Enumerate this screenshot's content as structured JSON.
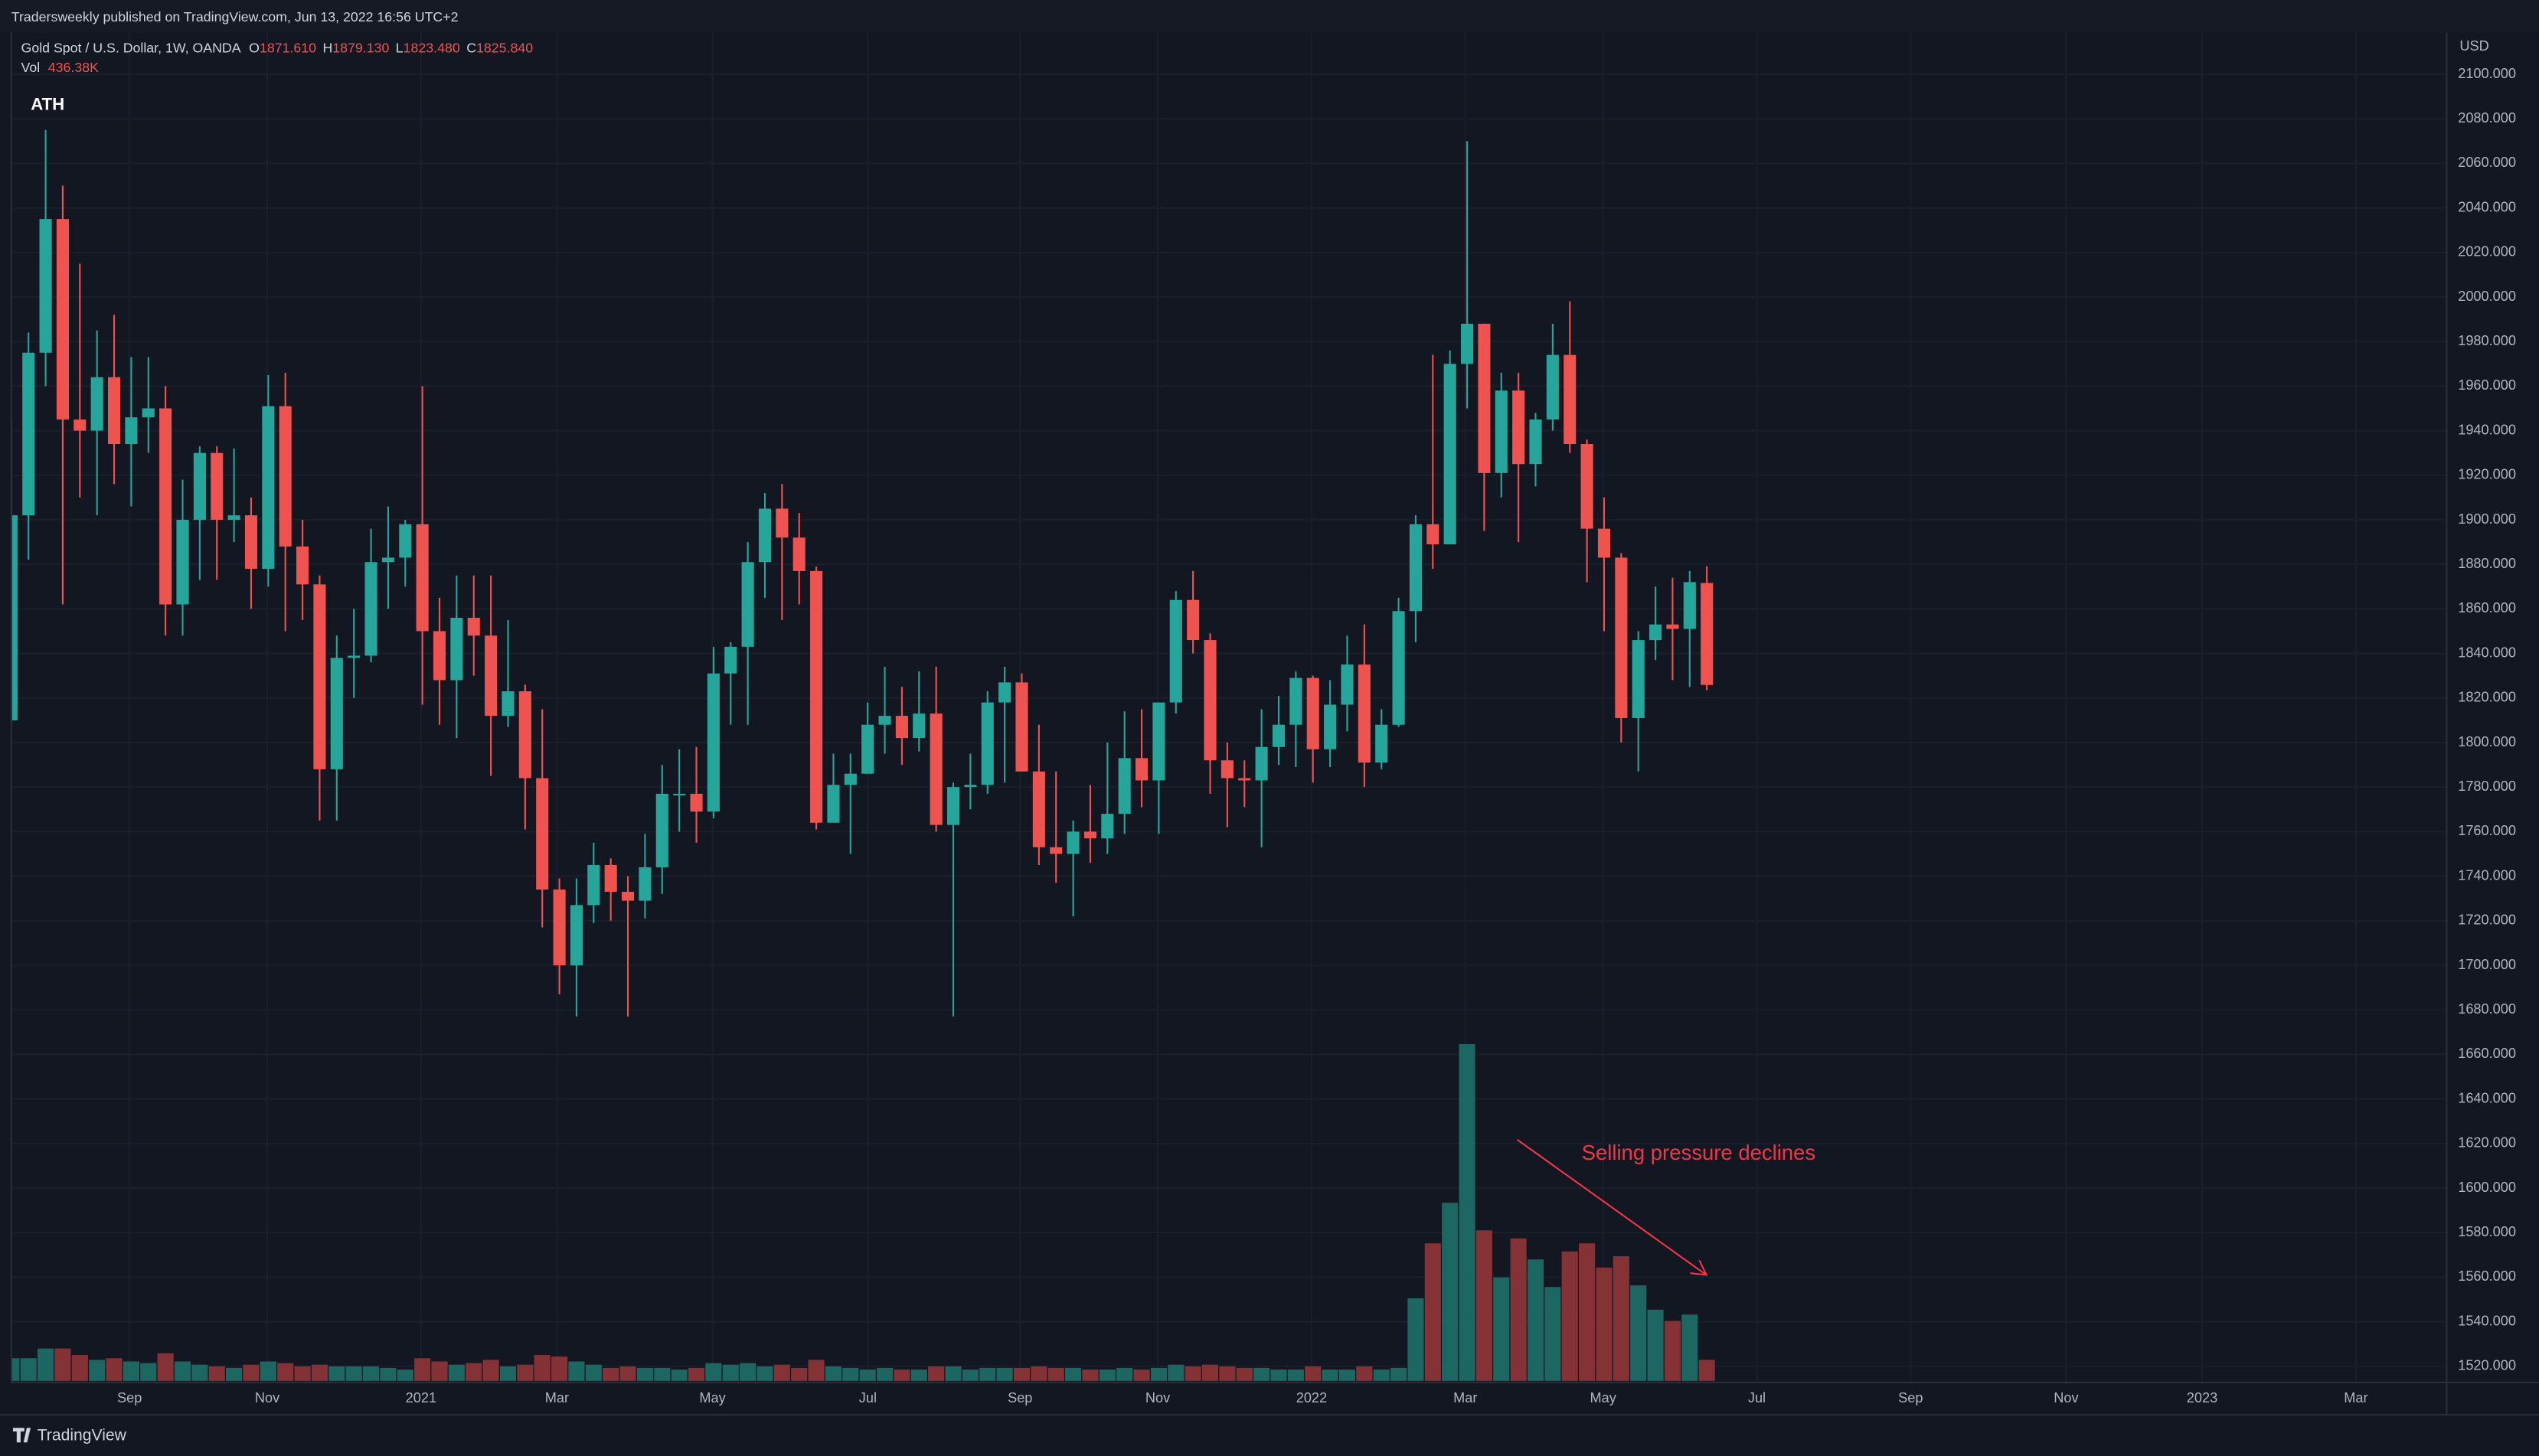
{
  "header": "Tradersweekly published on TradingView.com, Jun 13, 2022 16:56 UTC+2",
  "footer": {
    "logo": "TradingView"
  },
  "chart_data": {
    "type": "candlestick",
    "title": "Gold Spot / U.S. Dollar, 1W, OANDA",
    "legend_keys": [
      "O",
      "H",
      "L",
      "C"
    ],
    "legend_values": [
      "1871.610",
      "1879.130",
      "1823.480",
      "1825.840"
    ],
    "volume_name": "Vol",
    "volume_label": "436.38K",
    "axis_unit": "USD",
    "annotations": [
      "ATH",
      "Selling pressure declines"
    ],
    "up_color": "#26a69a",
    "down_color": "#ef5350",
    "volume_up_color": "#1d6763",
    "volume_down_color": "#853236",
    "annotation_color": "#f23645",
    "grid": true,
    "xlim": [
      0,
      142.2
    ],
    "xticks": [
      {
        "value": 6.9,
        "label": "Sep"
      },
      {
        "value": 14.94,
        "label": "Nov"
      },
      {
        "value": 23.92,
        "label": "2021"
      },
      {
        "value": 31.86,
        "label": "Mar"
      },
      {
        "value": 40.94,
        "label": "May"
      },
      {
        "value": 50.01,
        "label": "Jul"
      },
      {
        "value": 58.9,
        "label": "Sep"
      },
      {
        "value": 66.94,
        "label": "Nov"
      },
      {
        "value": 75.92,
        "label": "2022"
      },
      {
        "value": 84.9,
        "label": "Mar"
      },
      {
        "value": 92.94,
        "label": "May"
      },
      {
        "value": 101.92,
        "label": "Jul"
      },
      {
        "value": 110.9,
        "label": "Sep"
      },
      {
        "value": 119.98,
        "label": "Nov"
      },
      {
        "value": 127.92,
        "label": "2023"
      },
      {
        "value": 136.9,
        "label": "Mar"
      }
    ],
    "ylim": [
      1512.7,
      2118.8
    ],
    "yticks": [
      {
        "value": 1520,
        "label": "1520.000"
      },
      {
        "value": 1540,
        "label": "1540.000"
      },
      {
        "value": 1560,
        "label": "1560.000"
      },
      {
        "value": 1580,
        "label": "1580.000"
      },
      {
        "value": 1600,
        "label": "1600.000"
      },
      {
        "value": 1620,
        "label": "1620.000"
      },
      {
        "value": 1640,
        "label": "1640.000"
      },
      {
        "value": 1660,
        "label": "1660.000"
      },
      {
        "value": 1680,
        "label": "1680.000"
      },
      {
        "value": 1700,
        "label": "1700.000"
      },
      {
        "value": 1720,
        "label": "1720.000"
      },
      {
        "value": 1740,
        "label": "1740.000"
      },
      {
        "value": 1760,
        "label": "1760.000"
      },
      {
        "value": 1780,
        "label": "1780.000"
      },
      {
        "value": 1800,
        "label": "1800.000"
      },
      {
        "value": 1820,
        "label": "1820.000"
      },
      {
        "value": 1840,
        "label": "1840.000"
      },
      {
        "value": 1860,
        "label": "1860.000"
      },
      {
        "value": 1880,
        "label": "1880.000"
      },
      {
        "value": 1900,
        "label": "1900.000"
      },
      {
        "value": 1920,
        "label": "1920.000"
      },
      {
        "value": 1940,
        "label": "1940.000"
      },
      {
        "value": 1960,
        "label": "1960.000"
      },
      {
        "value": 1980,
        "label": "1980.000"
      },
      {
        "value": 2000,
        "label": "2000.000"
      },
      {
        "value": 2020,
        "label": "2020.000"
      },
      {
        "value": 2040,
        "label": "2040.000"
      },
      {
        "value": 2060,
        "label": "2060.000"
      },
      {
        "value": 2080,
        "label": "2080.000"
      },
      {
        "value": 2100,
        "label": "2100.000"
      }
    ],
    "volume_lim": [
      0,
      7500000
    ],
    "open": [
      1810,
      1902,
      1975,
      2035,
      1945,
      1940,
      1964,
      1934,
      1946,
      1950,
      1862,
      1900,
      1930,
      1900,
      1902,
      1878,
      1951,
      1888,
      1871,
      1788,
      1838,
      1839,
      1881,
      1883,
      1898,
      1850,
      1828,
      1856,
      1848,
      1812,
      1823,
      1784,
      1734,
      1700,
      1727,
      1745,
      1733,
      1729,
      1744,
      1777,
      1777,
      1769,
      1831,
      1843,
      1881,
      1905,
      1892,
      1877,
      1764,
      1781,
      1786,
      1808,
      1812,
      1802,
      1813,
      1763,
      1780,
      1781,
      1818,
      1827,
      1787,
      1753,
      1750,
      1760,
      1757,
      1768,
      1793,
      1783,
      1818,
      1864,
      1846,
      1792,
      1784,
      1783,
      1798,
      1808,
      1829,
      1797,
      1817,
      1835,
      1791,
      1808,
      1859,
      1898,
      1889,
      1970,
      1988,
      1921,
      1958,
      1925,
      1945,
      1974,
      1934,
      1896,
      1883,
      1811,
      1846,
      1853,
      1851,
      1871.61
    ],
    "high": [
      1945,
      1984,
      2075,
      2050,
      2015,
      1985,
      1992,
      1973,
      1973,
      1960,
      1918,
      1933,
      1933,
      1932,
      1910,
      1965,
      1966,
      1900,
      1875,
      1848,
      1860,
      1896,
      1906,
      1900,
      1960,
      1865,
      1875,
      1875,
      1875,
      1855,
      1826,
      1815,
      1739,
      1739,
      1755,
      1748,
      1740,
      1759,
      1790,
      1797,
      1798,
      1843,
      1845,
      1890,
      1912,
      1916,
      1903,
      1879,
      1795,
      1795,
      1818,
      1834,
      1825,
      1832,
      1834,
      1782,
      1795,
      1823,
      1834,
      1831,
      1808,
      1787,
      1765,
      1781,
      1800,
      1814,
      1815,
      1818,
      1868,
      1877,
      1849,
      1800,
      1792,
      1815,
      1821,
      1832,
      1830,
      1828,
      1848,
      1853,
      1815,
      1865,
      1902,
      1974,
      1976,
      2070,
      1988,
      1966,
      1966,
      1948,
      1988,
      1998,
      1936,
      1910,
      1885,
      1850,
      1870,
      1874,
      1877,
      1879.13
    ],
    "low": [
      1808,
      1882,
      1960,
      1862,
      1910,
      1902,
      1916,
      1906,
      1930,
      1848,
      1848,
      1873,
      1873,
      1890,
      1860,
      1870,
      1850,
      1855,
      1765,
      1765,
      1820,
      1836,
      1860,
      1870,
      1817,
      1808,
      1802,
      1830,
      1785,
      1807,
      1761,
      1717,
      1687,
      1677,
      1719,
      1720,
      1677,
      1721,
      1732,
      1760,
      1755,
      1766,
      1808,
      1808,
      1865,
      1855,
      1862,
      1761,
      1766,
      1750,
      1786,
      1795,
      1790,
      1796,
      1760,
      1677,
      1770,
      1777,
      1782,
      1787,
      1745,
      1737,
      1722,
      1746,
      1750,
      1759,
      1771,
      1759,
      1813,
      1840,
      1777,
      1762,
      1771,
      1753,
      1790,
      1789,
      1782,
      1789,
      1805,
      1780,
      1788,
      1807,
      1845,
      1878,
      1889,
      1950,
      1895,
      1910,
      1890,
      1915,
      1940,
      1930,
      1872,
      1850,
      1800,
      1787,
      1837,
      1828,
      1825,
      1823.48
    ],
    "close": [
      1902,
      1975,
      2035,
      1945,
      1940,
      1964,
      1934,
      1946,
      1950,
      1862,
      1900,
      1930,
      1900,
      1902,
      1878,
      1951,
      1888,
      1871,
      1788,
      1838,
      1839,
      1881,
      1883,
      1898,
      1850,
      1828,
      1856,
      1848,
      1812,
      1823,
      1784,
      1734,
      1700,
      1727,
      1745,
      1733,
      1729,
      1744,
      1777,
      1777,
      1769,
      1831,
      1843,
      1881,
      1905,
      1892,
      1877,
      1764,
      1781,
      1786,
      1808,
      1812,
      1802,
      1813,
      1763,
      1780,
      1781,
      1818,
      1827,
      1787,
      1753,
      1750,
      1760,
      1757,
      1768,
      1793,
      1783,
      1818,
      1864,
      1846,
      1792,
      1784,
      1783,
      1798,
      1808,
      1829,
      1797,
      1817,
      1835,
      1791,
      1808,
      1859,
      1898,
      1889,
      1970,
      1988,
      1921,
      1958,
      1925,
      1945,
      1974,
      1934,
      1896,
      1883,
      1811,
      1846,
      1853,
      1851,
      1872,
      1825.84
    ],
    "volume": [
      470000,
      470000,
      671000,
      671000,
      537000,
      436000,
      470000,
      403000,
      369000,
      571000,
      403000,
      336000,
      302000,
      269000,
      336000,
      403000,
      369000,
      302000,
      336000,
      302000,
      302000,
      302000,
      269000,
      235000,
      470000,
      403000,
      336000,
      369000,
      436000,
      302000,
      336000,
      537000,
      504000,
      403000,
      336000,
      269000,
      302000,
      269000,
      269000,
      235000,
      269000,
      369000,
      336000,
      369000,
      302000,
      336000,
      269000,
      436000,
      302000,
      269000,
      235000,
      269000,
      235000,
      235000,
      302000,
      302000,
      235000,
      269000,
      269000,
      269000,
      302000,
      269000,
      269000,
      235000,
      235000,
      269000,
      235000,
      269000,
      336000,
      302000,
      336000,
      302000,
      269000,
      269000,
      235000,
      235000,
      302000,
      235000,
      235000,
      302000,
      235000,
      269000,
      1712000,
      2853000,
      3693000,
      6983000,
      3122000,
      2148000,
      2954000,
      2518000,
      1947000,
      2686000,
      2853000,
      2350000,
      2585000,
      1981000,
      1477000,
      1242000,
      1376000,
      436380
    ]
  }
}
